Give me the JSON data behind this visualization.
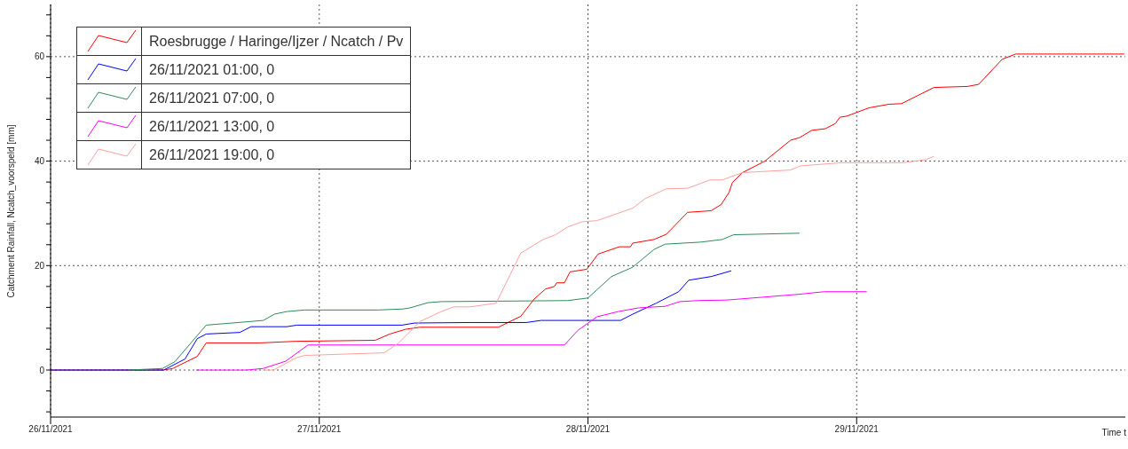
{
  "chart_data": {
    "type": "line",
    "xlabel": "Time t",
    "ylabel": "Catchment Rainfall, Ncatch_voorspeld [mm]",
    "xlim": [
      "2021-11-26",
      "2021-11-30"
    ],
    "xticks": [
      {
        "value": "2021-11-26",
        "label": "26/11/2021"
      },
      {
        "value": "2021-11-27",
        "label": "27/11/2021"
      },
      {
        "value": "2021-11-28",
        "label": "28/11/2021"
      },
      {
        "value": "2021-11-29",
        "label": "29/11/2021"
      }
    ],
    "ylim": [
      -9,
      70
    ],
    "yticks": [
      {
        "value": -8,
        "label": null
      },
      {
        "value": -4,
        "label": null
      },
      0,
      {
        "value": 4,
        "label": null
      },
      {
        "value": 8,
        "label": null
      },
      {
        "value": 12,
        "label": null
      },
      {
        "value": 16,
        "label": null
      },
      20,
      {
        "value": 24,
        "label": null
      },
      {
        "value": 28,
        "label": null
      },
      {
        "value": 32,
        "label": null
      },
      {
        "value": 36,
        "label": null
      },
      40,
      {
        "value": 44,
        "label": null
      },
      {
        "value": 48,
        "label": null
      },
      {
        "value": 52,
        "label": null
      },
      {
        "value": 56,
        "label": null
      },
      60,
      {
        "value": 64,
        "label": null
      },
      {
        "value": 68,
        "label": null
      }
    ],
    "grid": true,
    "legend": "top left",
    "marker": "none",
    "line_style": "solid",
    "series": [
      {
        "name": "Roesbrugge / Haringe/Ijzer / Ncatch / Pv",
        "color": "#ff0000",
        "x": [
          "2021-11-26T00:00",
          "2021-11-26T10:06",
          "2021-11-26T10:54",
          "2021-11-26T13:06",
          "2021-11-26T13:54",
          "2021-11-26T18:42",
          "2021-11-26T21:54",
          "2021-11-27T05:00",
          "2021-11-27T06:18",
          "2021-11-27T07:42",
          "2021-11-27T09:00",
          "2021-11-27T16:00",
          "2021-11-27T18:00",
          "2021-11-27T19:12",
          "2021-11-27T20:12",
          "2021-11-27T21:00",
          "2021-11-27T21:12",
          "2021-11-27T21:54",
          "2021-11-27T22:24",
          "2021-11-27T23:54",
          "2021-11-28T00:54",
          "2021-11-28T02:48",
          "2021-11-28T03:48",
          "2021-11-28T04:00",
          "2021-11-28T05:54",
          "2021-11-28T07:00",
          "2021-11-28T08:54",
          "2021-11-28T11:00",
          "2021-11-28T11:54",
          "2021-11-28T12:36",
          "2021-11-28T12:54",
          "2021-11-28T13:48",
          "2021-11-28T15:48",
          "2021-11-28T18:06",
          "2021-11-28T18:54",
          "2021-11-28T20:00",
          "2021-11-28T21:12",
          "2021-11-28T22:06",
          "2021-11-28T22:30",
          "2021-11-28T23:06",
          "2021-11-29T01:06",
          "2021-11-29T02:54",
          "2021-11-29T04:00",
          "2021-11-29T06:54",
          "2021-11-29T09:54",
          "2021-11-29T10:54",
          "2021-11-29T13:00",
          "2021-11-29T14:12",
          "2021-11-29T23:54"
        ],
        "values": [
          0,
          0,
          0.3,
          2.6,
          5.2,
          5.2,
          5.5,
          5.7,
          6.9,
          7.8,
          8.2,
          8.2,
          10.3,
          13.6,
          15.5,
          16,
          16.7,
          16.7,
          18.8,
          19.3,
          22.2,
          23.6,
          23.6,
          24.3,
          25,
          26,
          30.2,
          30.5,
          31.7,
          34,
          35.9,
          37.8,
          40,
          44,
          44.5,
          45.9,
          46.2,
          47.2,
          48.4,
          48.6,
          50.2,
          50.9,
          51,
          54.1,
          54.3,
          54.7,
          59.5,
          60.5,
          60.5
        ]
      },
      {
        "name": "26/11/2021 01:00, 0",
        "color": "#0000ff",
        "x": [
          "2021-11-26T00:00",
          "2021-11-26T10:06",
          "2021-11-26T12:00",
          "2021-11-26T13:06",
          "2021-11-26T13:54",
          "2021-11-26T16:54",
          "2021-11-26T17:54",
          "2021-11-26T21:06",
          "2021-11-26T22:00",
          "2021-11-27T07:24",
          "2021-11-27T08:30",
          "2021-11-27T13:30",
          "2021-11-27T18:30",
          "2021-11-27T19:48",
          "2021-11-28T02:54",
          "2021-11-28T04:00",
          "2021-11-28T06:06",
          "2021-11-28T08:06",
          "2021-11-28T09:00",
          "2021-11-28T11:00",
          "2021-11-28T12:48"
        ],
        "values": [
          0,
          0,
          2.1,
          6,
          6.9,
          7.2,
          8.3,
          8.3,
          8.6,
          8.6,
          9,
          9.1,
          9.1,
          9.5,
          9.5,
          10.7,
          12.8,
          15,
          17.2,
          17.9,
          19
        ]
      },
      {
        "name": "26/11/2021 07:00, 0",
        "color": "#2e8b57",
        "x": [
          "2021-11-26T07:00",
          "2021-11-26T10:00",
          "2021-11-26T11:06",
          "2021-11-26T13:54",
          "2021-11-26T19:00",
          "2021-11-26T20:00",
          "2021-11-26T21:06",
          "2021-11-26T22:42",
          "2021-11-27T05:18",
          "2021-11-27T07:30",
          "2021-11-27T08:06",
          "2021-11-27T09:42",
          "2021-11-27T10:54",
          "2021-11-27T22:12",
          "2021-11-28T00:00",
          "2021-11-28T02:06",
          "2021-11-28T04:00",
          "2021-11-28T05:54",
          "2021-11-28T06:54",
          "2021-11-28T10:06",
          "2021-11-28T12:00",
          "2021-11-28T13:00",
          "2021-11-28T18:54"
        ],
        "values": [
          0,
          0.3,
          1.6,
          8.6,
          9.5,
          10.7,
          11.2,
          11.5,
          11.5,
          11.7,
          11.9,
          12.9,
          13.1,
          13.3,
          13.8,
          17.9,
          19.7,
          23.1,
          24.1,
          24.5,
          25,
          25.9,
          26.2
        ]
      },
      {
        "name": "26/11/2021 13:00, 0",
        "color": "#ff00ff",
        "x": [
          "2021-11-26T13:00",
          "2021-11-26T17:30",
          "2021-11-26T19:00",
          "2021-11-26T21:00",
          "2021-11-26T23:00",
          "2021-11-27T21:54",
          "2021-11-27T23:06",
          "2021-11-28T00:48",
          "2021-11-28T02:42",
          "2021-11-28T04:30",
          "2021-11-28T06:54",
          "2021-11-28T08:12",
          "2021-11-28T09:48",
          "2021-11-28T12:24",
          "2021-11-28T18:48",
          "2021-11-28T21:06",
          "2021-11-29T00:54"
        ],
        "values": [
          0,
          0,
          0.3,
          1.7,
          4.8,
          4.8,
          7.6,
          10.2,
          11.2,
          11.9,
          12.2,
          13.1,
          13.3,
          13.4,
          14.5,
          15,
          15
        ]
      },
      {
        "name": "26/11/2021 19:00, 0",
        "color": "#ffa0a0",
        "x": [
          "2021-11-26T19:00",
          "2021-11-26T19:54",
          "2021-11-26T22:00",
          "2021-11-26T22:42",
          "2021-11-27T05:48",
          "2021-11-27T07:06",
          "2021-11-27T09:00",
          "2021-11-27T10:54",
          "2021-11-27T12:00",
          "2021-11-27T13:30",
          "2021-11-27T15:48",
          "2021-11-27T18:00",
          "2021-11-27T20:00",
          "2021-11-27T21:06",
          "2021-11-27T22:12",
          "2021-11-27T23:30",
          "2021-11-28T00:48",
          "2021-11-28T04:00",
          "2021-11-28T05:06",
          "2021-11-28T07:00",
          "2021-11-28T08:54",
          "2021-11-28T10:54",
          "2021-11-28T12:00",
          "2021-11-28T13:48",
          "2021-11-28T18:06",
          "2021-11-28T19:00",
          "2021-11-28T22:42",
          "2021-11-29T04:12",
          "2021-11-29T06:12",
          "2021-11-29T06:54"
        ],
        "values": [
          0,
          0,
          2.4,
          2.8,
          3.3,
          5.2,
          9.3,
          11.2,
          12.1,
          12.1,
          12.8,
          22.4,
          25,
          25.9,
          27.4,
          28.4,
          28.6,
          31,
          32.8,
          34.7,
          34.8,
          36.4,
          36.4,
          37.8,
          38.3,
          39.1,
          39.7,
          39.7,
          40.3,
          40.9
        ]
      }
    ]
  }
}
